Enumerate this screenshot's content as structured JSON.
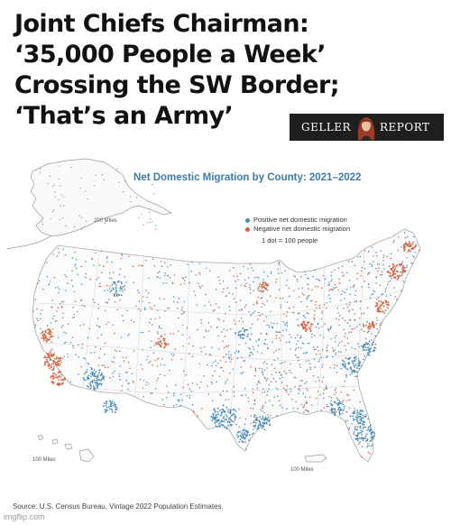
{
  "headline": {
    "line1": "Joint Chiefs Chairman:",
    "line2": "‘35,000 People a Week’",
    "line3": "Crossing the SW Border;",
    "line4": "‘That’s an Army’"
  },
  "logo": {
    "left": "GELLER",
    "right": "REPORT"
  },
  "map": {
    "title": "Net Domestic Migration by County: 2021–2022",
    "legend": {
      "positive": "Positive net domestic migration",
      "negative": "Negative net domestic migration",
      "scale": "1 dot = 100 people"
    },
    "scale_alaska": "200 Miles",
    "scale_hawaii": "100 Miles",
    "scale_pr": "100 Miles",
    "source": "Source: U.S. Census Bureau, Vintage 2022 Population Estimates.",
    "colors": {
      "positive": "#4a8db5",
      "negative": "#d4613e",
      "border": "#bdbdbd",
      "title": "#3d7ca8"
    }
  },
  "watermark": "imgflip.com"
}
